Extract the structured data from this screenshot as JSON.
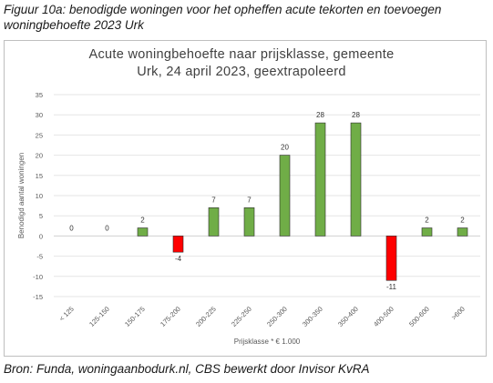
{
  "figure_caption": "Figuur 10a: benodigde woningen voor het opheffen acute tekorten en toevoegen woningbehoefte 2023 Urk",
  "source_note": "Bron: Funda, woningaanbodurk.nl, CBS bewerkt door Invisor KvRA",
  "colors": {
    "positive": "#70ad47",
    "negative": "#ff0000",
    "grid": "#e6e6e6",
    "axis_text": "#595959"
  },
  "chart_data": {
    "type": "bar",
    "title": "Acute woningbehoefte naar prijsklasse, gemeente Urk, 24 april 2023, geextrapoleerd",
    "xlabel": "Prijsklasse * € 1.000",
    "ylabel": "Benodigd aantal woningen",
    "ylim": [
      -15,
      35
    ],
    "yticks": [
      35,
      30,
      25,
      20,
      15,
      10,
      5,
      0,
      -5,
      -10,
      -15
    ],
    "grid": true,
    "legend": "none",
    "categories": [
      "< 125",
      "125-150",
      "150-175",
      "175-200",
      "200-225",
      "225-250",
      "250-300",
      "300-350",
      "350-400",
      "400-500",
      "500-600",
      ">600"
    ],
    "values": [
      0,
      0,
      2,
      -4,
      7,
      7,
      20,
      28,
      28,
      -11,
      2,
      2
    ]
  }
}
